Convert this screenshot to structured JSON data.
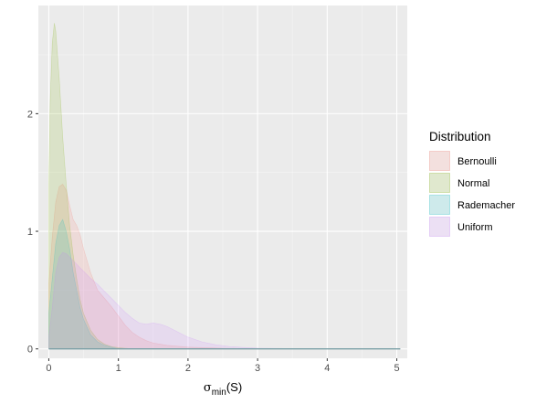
{
  "chart_data": {
    "type": "area",
    "subtype": "density",
    "xlabel": {
      "base": "σ",
      "sub": "min",
      "rest": "(S)"
    },
    "ylabel": "",
    "xlim": [
      -0.15,
      5.15
    ],
    "ylim": [
      -0.08,
      2.92
    ],
    "x_ticks": [
      0,
      1,
      2,
      3,
      4,
      5
    ],
    "y_ticks": [
      0,
      1,
      2
    ],
    "grid": true,
    "legend": {
      "title": "Distribution",
      "position": "right"
    },
    "series": [
      {
        "name": "Bernoulli",
        "color": "#F8766D",
        "points": [
          [
            0.0,
            0.55
          ],
          [
            0.05,
            0.95
          ],
          [
            0.1,
            1.25
          ],
          [
            0.15,
            1.38
          ],
          [
            0.2,
            1.4
          ],
          [
            0.25,
            1.35
          ],
          [
            0.3,
            1.22
          ],
          [
            0.35,
            1.1
          ],
          [
            0.4,
            1.05
          ],
          [
            0.45,
            0.97
          ],
          [
            0.5,
            0.85
          ],
          [
            0.6,
            0.65
          ],
          [
            0.7,
            0.5
          ],
          [
            0.8,
            0.43
          ],
          [
            0.9,
            0.36
          ],
          [
            1.0,
            0.28
          ],
          [
            1.1,
            0.2
          ],
          [
            1.2,
            0.14
          ],
          [
            1.3,
            0.1
          ],
          [
            1.4,
            0.07
          ],
          [
            1.5,
            0.05
          ],
          [
            1.7,
            0.03
          ],
          [
            2.0,
            0.015
          ],
          [
            2.5,
            0.005
          ],
          [
            3.0,
            0.0
          ],
          [
            5.05,
            0.0
          ]
        ]
      },
      {
        "name": "Normal",
        "color": "#7CAE00",
        "points": [
          [
            0.0,
            1.4
          ],
          [
            0.02,
            2.1
          ],
          [
            0.05,
            2.6
          ],
          [
            0.08,
            2.77
          ],
          [
            0.1,
            2.7
          ],
          [
            0.15,
            2.3
          ],
          [
            0.2,
            1.8
          ],
          [
            0.25,
            1.4
          ],
          [
            0.3,
            1.05
          ],
          [
            0.35,
            0.8
          ],
          [
            0.4,
            0.6
          ],
          [
            0.45,
            0.42
          ],
          [
            0.5,
            0.3
          ],
          [
            0.6,
            0.16
          ],
          [
            0.7,
            0.08
          ],
          [
            0.8,
            0.04
          ],
          [
            0.9,
            0.02
          ],
          [
            1.0,
            0.01
          ],
          [
            1.2,
            0.0
          ],
          [
            5.05,
            0.0
          ]
        ]
      },
      {
        "name": "Rademacher",
        "color": "#00BFC4",
        "points": [
          [
            0.0,
            0.3
          ],
          [
            0.05,
            0.6
          ],
          [
            0.1,
            0.9
          ],
          [
            0.15,
            1.05
          ],
          [
            0.2,
            1.1
          ],
          [
            0.25,
            1.0
          ],
          [
            0.3,
            0.85
          ],
          [
            0.35,
            0.65
          ],
          [
            0.4,
            0.5
          ],
          [
            0.45,
            0.35
          ],
          [
            0.5,
            0.25
          ],
          [
            0.6,
            0.12
          ],
          [
            0.7,
            0.06
          ],
          [
            0.8,
            0.03
          ],
          [
            0.9,
            0.015
          ],
          [
            1.0,
            0.0
          ],
          [
            5.05,
            0.0
          ]
        ]
      },
      {
        "name": "Uniform",
        "color": "#C77CFF",
        "points": [
          [
            0.0,
            0.1
          ],
          [
            0.05,
            0.35
          ],
          [
            0.1,
            0.65
          ],
          [
            0.15,
            0.78
          ],
          [
            0.2,
            0.82
          ],
          [
            0.25,
            0.81
          ],
          [
            0.3,
            0.78
          ],
          [
            0.4,
            0.72
          ],
          [
            0.5,
            0.66
          ],
          [
            0.6,
            0.6
          ],
          [
            0.7,
            0.55
          ],
          [
            0.8,
            0.49
          ],
          [
            0.9,
            0.43
          ],
          [
            1.0,
            0.37
          ],
          [
            1.1,
            0.31
          ],
          [
            1.2,
            0.26
          ],
          [
            1.3,
            0.22
          ],
          [
            1.4,
            0.21
          ],
          [
            1.5,
            0.22
          ],
          [
            1.6,
            0.21
          ],
          [
            1.7,
            0.19
          ],
          [
            1.8,
            0.16
          ],
          [
            1.9,
            0.13
          ],
          [
            2.0,
            0.1
          ],
          [
            2.2,
            0.06
          ],
          [
            2.4,
            0.035
          ],
          [
            2.6,
            0.02
          ],
          [
            2.8,
            0.012
          ],
          [
            3.0,
            0.006
          ],
          [
            3.5,
            0.002
          ],
          [
            4.0,
            0.0
          ],
          [
            5.05,
            0.0
          ]
        ]
      }
    ]
  }
}
